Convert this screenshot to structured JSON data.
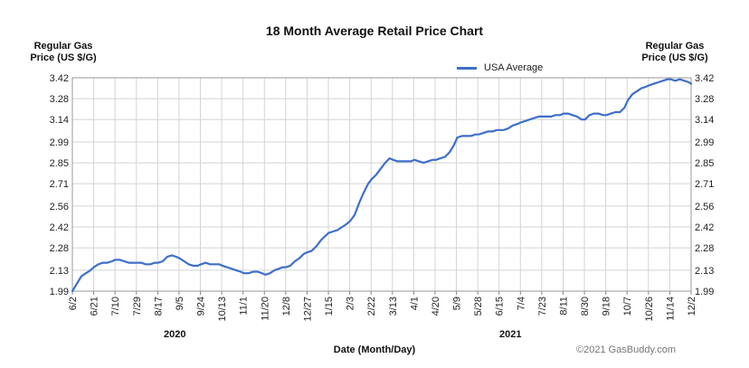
{
  "title": "18 Month Average Retail Price Chart",
  "y_axis_title_left": [
    "Regular Gas",
    "Price (US $/G)"
  ],
  "y_axis_title_right": [
    "Regular Gas",
    "Price (US $/G)"
  ],
  "legend": {
    "label": "USA Average",
    "color": "#3f6fc9"
  },
  "x_axis_title": "Date (Month/Day)",
  "year_labels": [
    "2020",
    "2021"
  ],
  "copyright": "©2021 GasBuddy.com",
  "chart_data": {
    "type": "line",
    "title": "18 Month Average Retail Price Chart",
    "xlabel": "Date (Month/Day)",
    "ylabel": "Regular Gas Price (US $/G)",
    "ylim": [
      1.99,
      3.42
    ],
    "yticks": [
      "3.42",
      "3.28",
      "3.14",
      "2.99",
      "2.85",
      "2.71",
      "2.56",
      "2.42",
      "2.28",
      "2.13",
      "1.99"
    ],
    "xticks": [
      "6/2",
      "6/21",
      "7/10",
      "7/29",
      "8/17",
      "9/5",
      "9/24",
      "10/13",
      "11/1",
      "11/20",
      "12/8",
      "12/27",
      "1/15",
      "2/3",
      "2/22",
      "3/13",
      "4/1",
      "4/20",
      "5/9",
      "5/28",
      "6/15",
      "7/4",
      "7/23",
      "8/11",
      "8/30",
      "9/18",
      "10/7",
      "10/26",
      "11/14",
      "12/2"
    ],
    "grid": true,
    "legend_position": "top-right",
    "series": [
      {
        "name": "USA Average",
        "color": "#3f6fc9",
        "x": [
          "2020-06-02",
          "2020-06-06",
          "2020-06-10",
          "2020-06-14",
          "2020-06-18",
          "2020-06-21",
          "2020-06-25",
          "2020-06-29",
          "2020-07-03",
          "2020-07-07",
          "2020-07-10",
          "2020-07-14",
          "2020-07-18",
          "2020-07-22",
          "2020-07-26",
          "2020-07-29",
          "2020-08-02",
          "2020-08-06",
          "2020-08-10",
          "2020-08-14",
          "2020-08-17",
          "2020-08-21",
          "2020-08-25",
          "2020-08-29",
          "2020-09-02",
          "2020-09-05",
          "2020-09-09",
          "2020-09-13",
          "2020-09-17",
          "2020-09-21",
          "2020-09-24",
          "2020-09-28",
          "2020-10-02",
          "2020-10-06",
          "2020-10-10",
          "2020-10-13",
          "2020-10-17",
          "2020-10-21",
          "2020-10-25",
          "2020-10-29",
          "2020-11-01",
          "2020-11-05",
          "2020-11-09",
          "2020-11-13",
          "2020-11-17",
          "2020-11-20",
          "2020-11-24",
          "2020-11-28",
          "2020-12-02",
          "2020-12-05",
          "2020-12-08",
          "2020-12-12",
          "2020-12-16",
          "2020-12-20",
          "2020-12-24",
          "2020-12-27",
          "2020-12-31",
          "2021-01-04",
          "2021-01-08",
          "2021-01-12",
          "2021-01-15",
          "2021-01-19",
          "2021-01-23",
          "2021-01-27",
          "2021-01-31",
          "2021-02-03",
          "2021-02-07",
          "2021-02-11",
          "2021-02-15",
          "2021-02-19",
          "2021-02-22",
          "2021-02-26",
          "2021-03-02",
          "2021-03-06",
          "2021-03-10",
          "2021-03-13",
          "2021-03-17",
          "2021-03-21",
          "2021-03-25",
          "2021-03-29",
          "2021-04-01",
          "2021-04-05",
          "2021-04-09",
          "2021-04-13",
          "2021-04-17",
          "2021-04-20",
          "2021-04-24",
          "2021-04-28",
          "2021-05-02",
          "2021-05-06",
          "2021-05-09",
          "2021-05-13",
          "2021-05-17",
          "2021-05-21",
          "2021-05-25",
          "2021-05-28",
          "2021-06-01",
          "2021-06-05",
          "2021-06-09",
          "2021-06-13",
          "2021-06-15",
          "2021-06-19",
          "2021-06-23",
          "2021-06-27",
          "2021-07-01",
          "2021-07-04",
          "2021-07-08",
          "2021-07-12",
          "2021-07-16",
          "2021-07-20",
          "2021-07-23",
          "2021-07-27",
          "2021-07-31",
          "2021-08-04",
          "2021-08-08",
          "2021-08-11",
          "2021-08-15",
          "2021-08-19",
          "2021-08-23",
          "2021-08-27",
          "2021-08-30",
          "2021-09-03",
          "2021-09-07",
          "2021-09-11",
          "2021-09-15",
          "2021-09-18",
          "2021-09-22",
          "2021-09-26",
          "2021-09-30",
          "2021-10-04",
          "2021-10-07",
          "2021-10-11",
          "2021-10-15",
          "2021-10-19",
          "2021-10-23",
          "2021-10-26",
          "2021-10-30",
          "2021-11-03",
          "2021-11-07",
          "2021-11-11",
          "2021-11-14",
          "2021-11-18",
          "2021-11-22",
          "2021-11-26",
          "2021-11-30",
          "2021-12-02"
        ],
        "values": [
          1.99,
          2.04,
          2.09,
          2.11,
          2.13,
          2.15,
          2.17,
          2.18,
          2.18,
          2.19,
          2.2,
          2.2,
          2.19,
          2.18,
          2.18,
          2.18,
          2.18,
          2.17,
          2.17,
          2.18,
          2.18,
          2.19,
          2.22,
          2.23,
          2.22,
          2.21,
          2.19,
          2.17,
          2.16,
          2.16,
          2.17,
          2.18,
          2.17,
          2.17,
          2.17,
          2.16,
          2.15,
          2.14,
          2.13,
          2.12,
          2.11,
          2.11,
          2.12,
          2.12,
          2.11,
          2.1,
          2.11,
          2.13,
          2.14,
          2.15,
          2.15,
          2.16,
          2.19,
          2.21,
          2.24,
          2.25,
          2.26,
          2.29,
          2.33,
          2.36,
          2.38,
          2.39,
          2.4,
          2.42,
          2.44,
          2.46,
          2.5,
          2.58,
          2.65,
          2.71,
          2.74,
          2.77,
          2.81,
          2.85,
          2.88,
          2.87,
          2.86,
          2.86,
          2.86,
          2.86,
          2.87,
          2.86,
          2.85,
          2.86,
          2.87,
          2.87,
          2.88,
          2.89,
          2.92,
          2.97,
          3.02,
          3.03,
          3.03,
          3.03,
          3.04,
          3.04,
          3.05,
          3.06,
          3.06,
          3.07,
          3.07,
          3.07,
          3.08,
          3.1,
          3.11,
          3.12,
          3.13,
          3.14,
          3.15,
          3.16,
          3.16,
          3.16,
          3.16,
          3.17,
          3.17,
          3.18,
          3.18,
          3.17,
          3.16,
          3.14,
          3.14,
          3.17,
          3.18,
          3.18,
          3.17,
          3.17,
          3.18,
          3.19,
          3.19,
          3.22,
          3.27,
          3.31,
          3.33,
          3.35,
          3.36,
          3.37,
          3.38,
          3.39,
          3.4,
          3.41,
          3.41,
          3.4,
          3.41,
          3.4,
          3.39,
          3.38
        ]
      }
    ]
  }
}
